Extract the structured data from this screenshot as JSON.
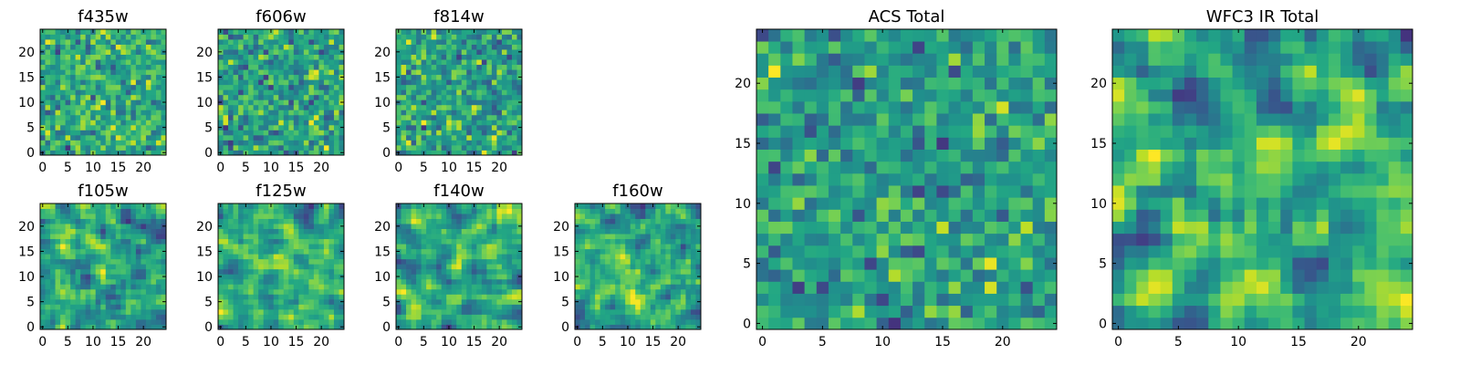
{
  "chart_data": [
    {
      "type": "heatmap",
      "id": "f435w",
      "title": "f435w",
      "grid": 25,
      "xticks": [
        "0",
        "5",
        "10",
        "15",
        "20"
      ],
      "yticks": [
        "0",
        "5",
        "10",
        "15",
        "20"
      ],
      "colormap": "viridis",
      "seed": 11
    },
    {
      "type": "heatmap",
      "id": "f606w",
      "title": "f606w",
      "grid": 25,
      "xticks": [
        "0",
        "5",
        "10",
        "15",
        "20"
      ],
      "yticks": [
        "0",
        "5",
        "10",
        "15",
        "20"
      ],
      "colormap": "viridis",
      "seed": 23
    },
    {
      "type": "heatmap",
      "id": "f814w",
      "title": "f814w",
      "grid": 25,
      "xticks": [
        "0",
        "5",
        "10",
        "15",
        "20"
      ],
      "yticks": [
        "0",
        "5",
        "10",
        "15",
        "20"
      ],
      "colormap": "viridis",
      "seed": 37
    },
    {
      "type": "heatmap",
      "id": "f105w",
      "title": "f105w",
      "grid": 25,
      "xticks": [
        "0",
        "5",
        "10",
        "15",
        "20"
      ],
      "yticks": [
        "0",
        "5",
        "10",
        "15",
        "20"
      ],
      "colormap": "viridis",
      "seed": 41
    },
    {
      "type": "heatmap",
      "id": "f125w",
      "title": "f125w",
      "grid": 25,
      "xticks": [
        "0",
        "5",
        "10",
        "15",
        "20"
      ],
      "yticks": [
        "0",
        "5",
        "10",
        "15",
        "20"
      ],
      "colormap": "viridis",
      "seed": 53
    },
    {
      "type": "heatmap",
      "id": "f140w",
      "title": "f140w",
      "grid": 25,
      "xticks": [
        "0",
        "5",
        "10",
        "15",
        "20"
      ],
      "yticks": [
        "0",
        "5",
        "10",
        "15",
        "20"
      ],
      "colormap": "viridis",
      "seed": 67
    },
    {
      "type": "heatmap",
      "id": "f160w",
      "title": "f160w",
      "grid": 25,
      "xticks": [
        "0",
        "5",
        "10",
        "15",
        "20"
      ],
      "yticks": [
        "0",
        "5",
        "10",
        "15",
        "20"
      ],
      "colormap": "viridis",
      "seed": 79
    },
    {
      "type": "heatmap",
      "id": "acs-total",
      "title": "ACS Total",
      "grid": 25,
      "xticks": [
        "0",
        "5",
        "10",
        "15",
        "20"
      ],
      "yticks": [
        "0",
        "5",
        "10",
        "15",
        "20"
      ],
      "colormap": "viridis",
      "seed": 83
    },
    {
      "type": "heatmap",
      "id": "wfc3-ir-total",
      "title": "WFC3 IR Total",
      "grid": 25,
      "xticks": [
        "0",
        "5",
        "10",
        "15",
        "20"
      ],
      "yticks": [
        "0",
        "5",
        "10",
        "15",
        "20"
      ],
      "colormap": "viridis",
      "seed": 97
    }
  ]
}
